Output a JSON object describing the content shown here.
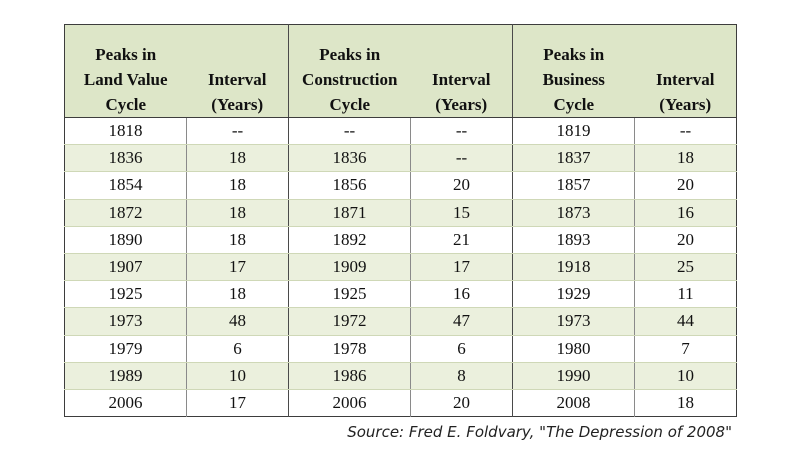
{
  "table": {
    "headers": [
      "Peaks in Land Value Cycle",
      "Interval (Years)",
      "Peaks in Construction Cycle",
      "Interval (Years)",
      "Peaks in Business Cycle",
      "Interval (Years)"
    ],
    "header_lines": [
      [
        "Peaks in",
        "Land Value",
        "Cycle"
      ],
      [
        "Interval",
        "(Years)"
      ],
      [
        "Peaks in",
        "Construction",
        "Cycle"
      ],
      [
        "Interval",
        "(Years)"
      ],
      [
        "Peaks in",
        "Business",
        "Cycle"
      ],
      [
        "Interval",
        "(Years)"
      ]
    ],
    "rows": [
      [
        "1818",
        "--",
        "--",
        "--",
        "1819",
        "--"
      ],
      [
        "1836",
        "18",
        "1836",
        "--",
        "1837",
        "18"
      ],
      [
        "1854",
        "18",
        "1856",
        "20",
        "1857",
        "20"
      ],
      [
        "1872",
        "18",
        "1871",
        "15",
        "1873",
        "16"
      ],
      [
        "1890",
        "18",
        "1892",
        "21",
        "1893",
        "20"
      ],
      [
        "1907",
        "17",
        "1909",
        "17",
        "1918",
        "25"
      ],
      [
        "1925",
        "18",
        "1925",
        "16",
        "1929",
        "11"
      ],
      [
        "1973",
        "48",
        "1972",
        "47",
        "1973",
        "44"
      ],
      [
        "1979",
        "6",
        "1978",
        "6",
        "1980",
        "7"
      ],
      [
        "1989",
        "10",
        "1986",
        "8",
        "1990",
        "10"
      ],
      [
        "2006",
        "17",
        "2006",
        "20",
        "2008",
        "18"
      ]
    ]
  },
  "source": "Source: Fred E. Foldvary, \"The Depression of 2008\"",
  "colors": {
    "header_background": "#dde6c8",
    "band_background": "#ebf0dd",
    "border": "#3d3d3d"
  }
}
